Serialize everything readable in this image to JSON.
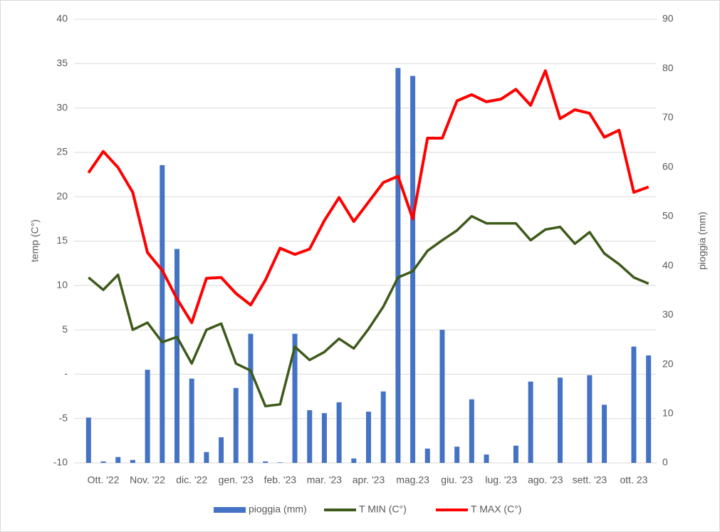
{
  "chart_data": {
    "type": "bar-line",
    "y_label": "temp (C°)",
    "y2_label": "pioggia (mm)",
    "categories": [
      null,
      "Ott. '22",
      null,
      null,
      "Nov. '22",
      null,
      null,
      "dic. '22",
      null,
      null,
      "gen. '23",
      null,
      null,
      "feb. '23",
      null,
      null,
      "mar. '23",
      null,
      null,
      "apr. '23",
      null,
      null,
      "mag.23",
      null,
      null,
      "giu. '23",
      null,
      null,
      "lug. '23",
      null,
      null,
      "ago. '23",
      null,
      null,
      "sett. '23",
      null,
      null,
      "ott. 23",
      null
    ],
    "ylim": [
      -10,
      40
    ],
    "yticks": [
      -10,
      -5,
      {
        "value": 0,
        "label": "-"
      },
      5,
      10,
      15,
      20,
      25,
      30,
      35,
      40
    ],
    "y2lim": [
      0,
      90
    ],
    "y2ticks": [
      0,
      10,
      20,
      30,
      40,
      50,
      60,
      70,
      80,
      90
    ],
    "grid": true,
    "legend": "bottom",
    "series": [
      {
        "name": "pioggia (mm)",
        "type": "bar",
        "axis": "y2",
        "color": "#4472c4",
        "values": [
          9.2,
          0.3,
          1.2,
          0.6,
          18.9,
          60.4,
          43.4,
          17.1,
          2.2,
          5.2,
          15.2,
          26.2,
          0.3,
          0.1,
          26.2,
          10.7,
          10.1,
          12.3,
          0.9,
          10.4,
          14.5,
          80.1,
          78.5,
          2.9,
          27.0,
          3.3,
          12.9,
          1.7,
          0,
          3.5,
          16.5,
          0,
          17.3,
          0,
          17.8,
          11.8,
          0,
          23.6,
          21.8
        ]
      },
      {
        "name": "T MIN (C°)",
        "type": "line",
        "color": "#3d5a1a",
        "values": [
          10.9,
          9.5,
          11.2,
          5.0,
          5.8,
          3.6,
          4.2,
          1.2,
          5.0,
          5.7,
          1.2,
          0.4,
          -3.6,
          -3.4,
          3.1,
          1.6,
          2.5,
          4.0,
          2.9,
          5.1,
          7.6,
          10.9,
          11.6,
          13.9,
          15.1,
          16.2,
          17.8,
          17.0,
          17.0,
          17.0,
          15.1,
          16.3,
          16.6,
          14.7,
          16.0,
          13.6,
          12.4,
          10.9,
          10.2
        ]
      },
      {
        "name": "T MAX (C°)",
        "type": "line",
        "color": "#ff0000",
        "values": [
          22.7,
          25.1,
          23.3,
          20.5,
          13.7,
          11.7,
          8.5,
          5.8,
          10.8,
          10.9,
          9.1,
          7.8,
          10.6,
          14.2,
          13.5,
          14.1,
          17.3,
          19.9,
          17.2,
          19.4,
          21.6,
          22.3,
          17.5,
          26.6,
          26.6,
          30.8,
          31.5,
          30.7,
          31.0,
          32.1,
          30.3,
          34.2,
          28.8,
          29.8,
          29.4,
          26.7,
          27.5,
          20.5,
          21.1
        ]
      }
    ]
  }
}
